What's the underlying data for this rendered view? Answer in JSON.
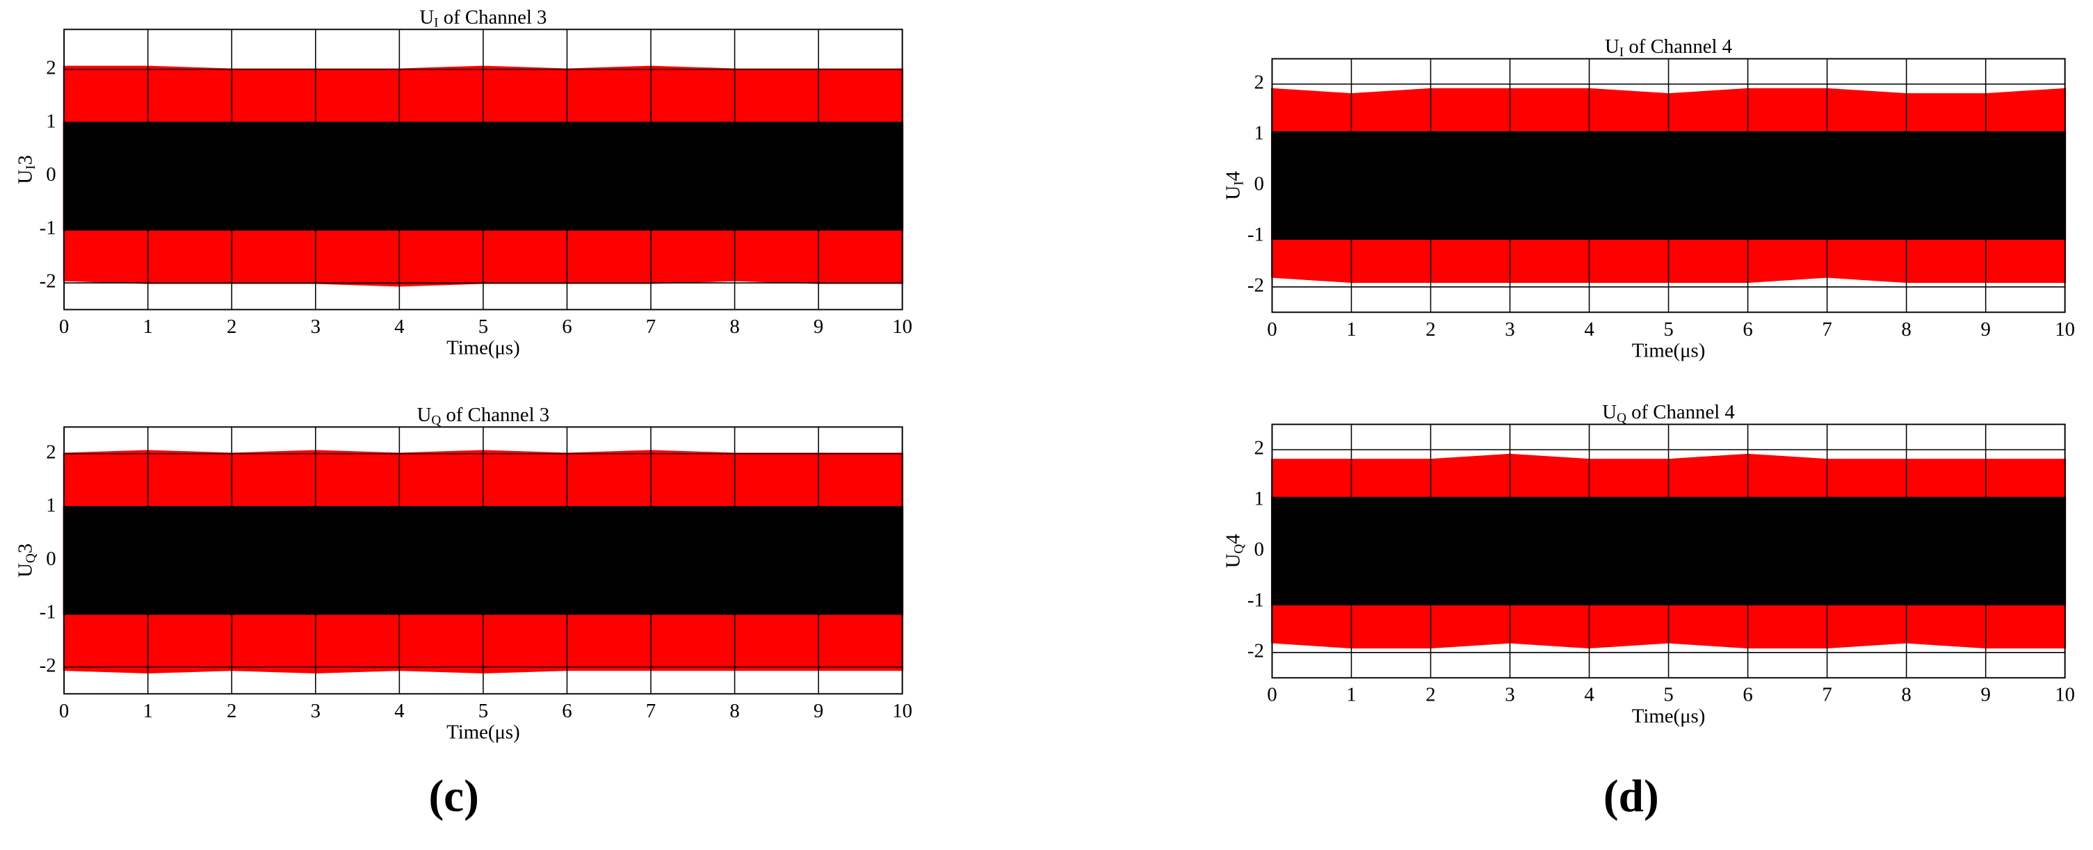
{
  "chart_data": [
    {
      "type": "band",
      "title": [
        "U",
        "I",
        " of Channel 3"
      ],
      "ylabel": [
        "U",
        "I",
        "3"
      ],
      "xlabel": "Time(μs)",
      "x": [
        0,
        1,
        2,
        3,
        4,
        5,
        6,
        7,
        8,
        9,
        10
      ],
      "series": [
        {
          "color": "#ff0000",
          "upper": [
            2.05,
            2.05,
            2.0,
            2.0,
            2.0,
            2.05,
            2.0,
            2.05,
            2.0,
            2.0,
            2.0
          ],
          "lower": [
            -1.95,
            -2.0,
            -2.0,
            -2.0,
            -2.05,
            -2.0,
            -2.0,
            -2.0,
            -1.95,
            -2.0,
            -2.0
          ]
        },
        {
          "color": "#000000",
          "upper": [
            1.0,
            1.0,
            1.0,
            1.0,
            1.0,
            1.0,
            1.0,
            1.0,
            1.0,
            1.0,
            1.0
          ],
          "lower": [
            -1.0,
            -1.0,
            -1.0,
            -1.0,
            -1.0,
            -1.0,
            -1.0,
            -1.0,
            -1.0,
            -1.0,
            -1.0
          ]
        }
      ],
      "xlim": [
        0,
        10
      ],
      "xticks": [
        0,
        1,
        2,
        3,
        4,
        5,
        6,
        7,
        8,
        9,
        10
      ],
      "ylim": [
        -2.5,
        2.75
      ],
      "yticks": [
        -2,
        -1,
        0,
        1,
        2
      ],
      "grid": true
    },
    {
      "type": "band",
      "title": [
        "U",
        "Q",
        " of Channel 3"
      ],
      "ylabel": [
        "U",
        "Q",
        "3"
      ],
      "xlabel": "Time(μs)",
      "x": [
        0,
        1,
        2,
        3,
        4,
        5,
        6,
        7,
        8,
        9,
        10
      ],
      "series": [
        {
          "color": "#ff0000",
          "upper": [
            2.0,
            2.05,
            2.0,
            2.05,
            2.0,
            2.05,
            2.0,
            2.05,
            2.0,
            2.0,
            2.0
          ],
          "lower": [
            -2.05,
            -2.1,
            -2.05,
            -2.1,
            -2.05,
            -2.1,
            -2.05,
            -2.05,
            -2.05,
            -2.05,
            -2.05
          ]
        },
        {
          "color": "#000000",
          "upper": [
            1.0,
            1.0,
            1.0,
            1.0,
            1.0,
            1.0,
            1.0,
            1.0,
            1.0,
            1.0,
            1.0
          ],
          "lower": [
            -1.0,
            -1.0,
            -1.0,
            -1.0,
            -1.0,
            -1.0,
            -1.0,
            -1.0,
            -1.0,
            -1.0,
            -1.0
          ]
        }
      ],
      "xlim": [
        0,
        10
      ],
      "xticks": [
        0,
        1,
        2,
        3,
        4,
        5,
        6,
        7,
        8,
        9,
        10
      ],
      "ylim": [
        -2.5,
        2.5
      ],
      "yticks": [
        -2,
        -1,
        0,
        1,
        2
      ],
      "grid": true
    },
    {
      "type": "band",
      "title": [
        "U",
        "I",
        " of Channel 4"
      ],
      "ylabel": [
        "U",
        "I",
        "4"
      ],
      "xlabel": "Time(μs)",
      "x": [
        0,
        1,
        2,
        3,
        4,
        5,
        6,
        7,
        8,
        9,
        10
      ],
      "series": [
        {
          "color": "#ff0000",
          "upper": [
            1.9,
            1.8,
            1.9,
            1.9,
            1.9,
            1.8,
            1.9,
            1.9,
            1.8,
            1.8,
            1.9
          ],
          "lower": [
            -1.8,
            -1.9,
            -1.9,
            -1.9,
            -1.9,
            -1.9,
            -1.9,
            -1.8,
            -1.9,
            -1.9,
            -1.9
          ]
        },
        {
          "color": "#000000",
          "upper": [
            1.05,
            1.05,
            1.05,
            1.05,
            1.05,
            1.05,
            1.05,
            1.05,
            1.05,
            1.05,
            1.05
          ],
          "lower": [
            -1.05,
            -1.05,
            -1.05,
            -1.05,
            -1.05,
            -1.05,
            -1.05,
            -1.05,
            -1.05,
            -1.05,
            -1.05
          ]
        }
      ],
      "xlim": [
        0,
        10
      ],
      "xticks": [
        0,
        1,
        2,
        3,
        4,
        5,
        6,
        7,
        8,
        9,
        10
      ],
      "ylim": [
        -2.5,
        2.5
      ],
      "yticks": [
        -2,
        -1,
        0,
        1,
        2
      ],
      "grid": true
    },
    {
      "type": "band",
      "title": [
        "U",
        "Q",
        " of Channel 4"
      ],
      "ylabel": [
        "U",
        "Q",
        "4"
      ],
      "xlabel": "Time(μs)",
      "x": [
        0,
        1,
        2,
        3,
        4,
        5,
        6,
        7,
        8,
        9,
        10
      ],
      "series": [
        {
          "color": "#ff0000",
          "upper": [
            1.8,
            1.8,
            1.8,
            1.9,
            1.8,
            1.8,
            1.9,
            1.8,
            1.8,
            1.8,
            1.8
          ],
          "lower": [
            -1.8,
            -1.9,
            -1.9,
            -1.8,
            -1.9,
            -1.8,
            -1.9,
            -1.9,
            -1.8,
            -1.9,
            -1.9
          ]
        },
        {
          "color": "#000000",
          "upper": [
            1.05,
            1.05,
            1.05,
            1.05,
            1.05,
            1.05,
            1.05,
            1.05,
            1.05,
            1.05,
            1.05
          ],
          "lower": [
            -1.05,
            -1.05,
            -1.05,
            -1.05,
            -1.05,
            -1.05,
            -1.05,
            -1.05,
            -1.05,
            -1.05,
            -1.05
          ]
        }
      ],
      "xlim": [
        0,
        10
      ],
      "xticks": [
        0,
        1,
        2,
        3,
        4,
        5,
        6,
        7,
        8,
        9,
        10
      ],
      "ylim": [
        -2.5,
        2.5
      ],
      "yticks": [
        -2,
        -1,
        0,
        1,
        2
      ],
      "grid": true
    }
  ],
  "panel_labels": [
    "(c)",
    "(d)"
  ]
}
